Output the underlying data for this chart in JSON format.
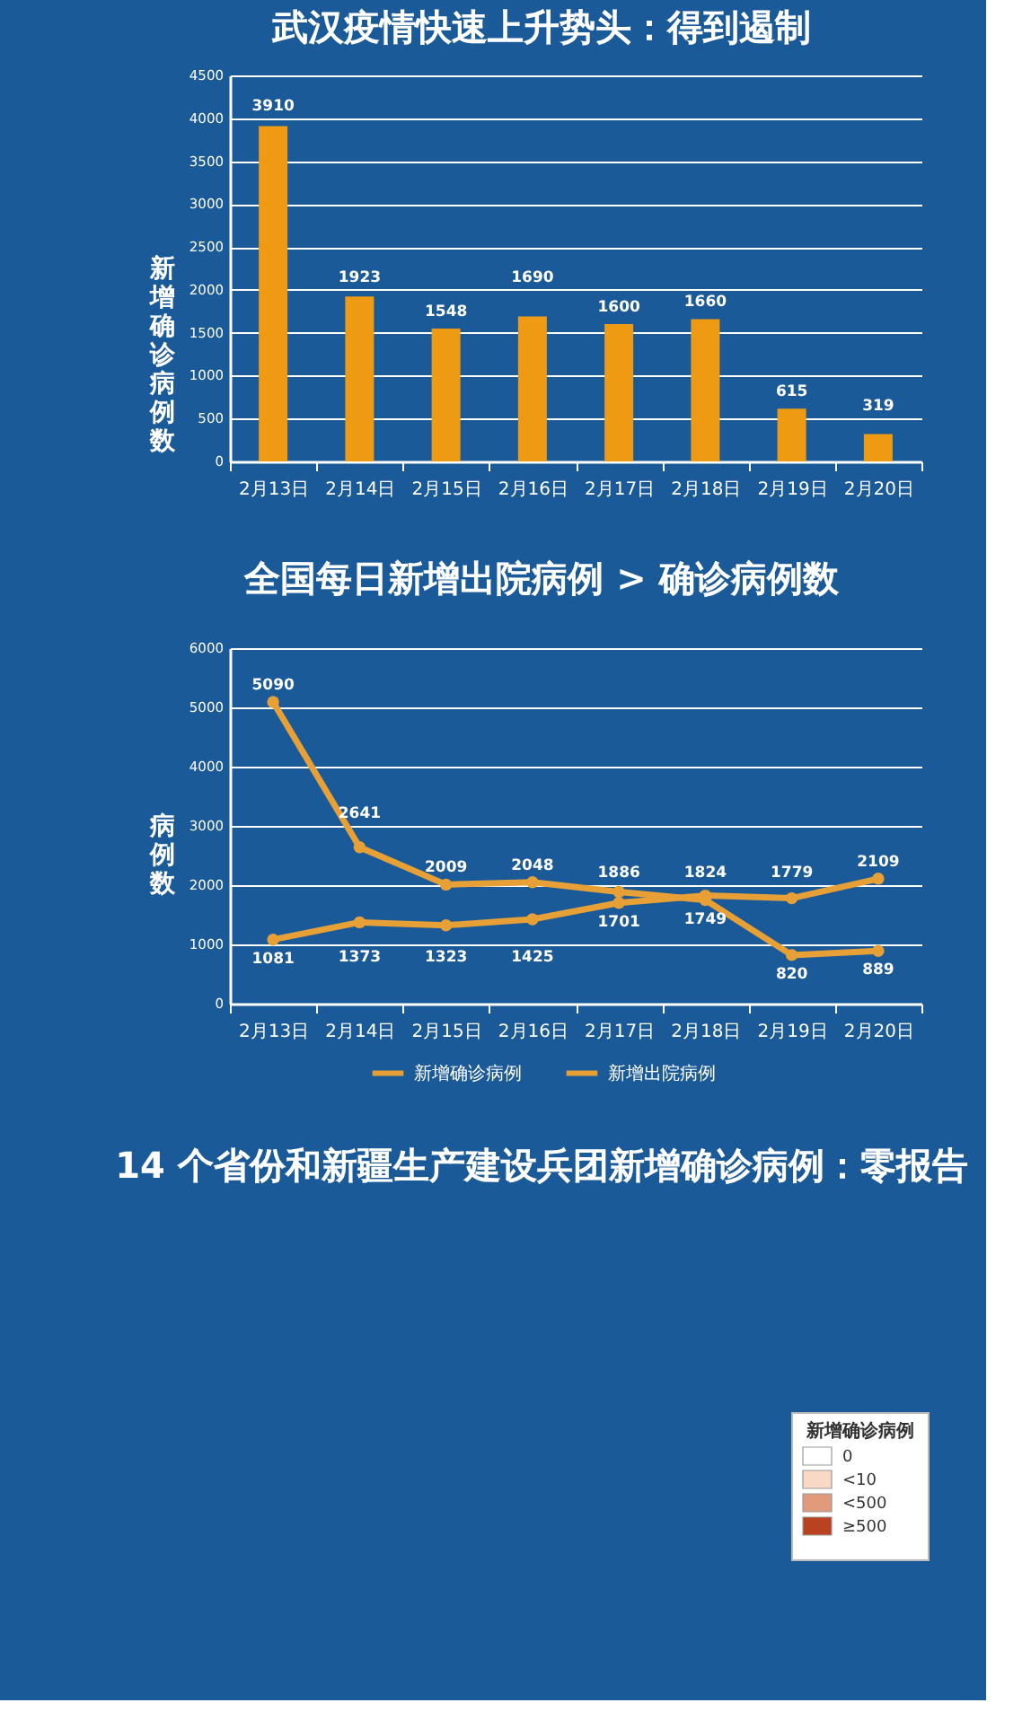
{
  "chart_data": [
    {
      "type": "bar",
      "title": "武汉疫情快速上升势头：得到遏制",
      "ylabel": "新增确诊病例数",
      "categories": [
        "2月13日",
        "2月14日",
        "2月15日",
        "2月16日",
        "2月17日",
        "2月18日",
        "2月19日",
        "2月20日"
      ],
      "values": [
        3910,
        1923,
        1548,
        1690,
        1600,
        1660,
        615,
        319
      ],
      "color": "#ee9a12",
      "ylim": [
        0,
        4500
      ],
      "yticks": [
        0,
        500,
        1000,
        1500,
        2000,
        2500,
        3000,
        3500,
        4000,
        4500
      ],
      "grid": "y",
      "data_labels": true
    },
    {
      "type": "line",
      "title": "全国每日新增出院病例 > 确诊病例数",
      "ylabel": "病例数",
      "categories": [
        "2月13日",
        "2月14日",
        "2月15日",
        "2月16日",
        "2月17日",
        "2月18日",
        "2月19日",
        "2月20日"
      ],
      "series": [
        {
          "name": "新增确诊病例",
          "color": "#e6a035",
          "values": [
            5090,
            2641,
            2009,
            2048,
            1886,
            1749,
            820,
            889
          ]
        },
        {
          "name": "新增出院病例",
          "color": "#e6a035",
          "values": [
            1081,
            1373,
            1323,
            1425,
            1701,
            1824,
            1779,
            2109
          ]
        }
      ],
      "ylim": [
        0,
        6000
      ],
      "yticks": [
        0,
        1000,
        2000,
        3000,
        4000,
        5000,
        6000
      ],
      "grid": "y",
      "legend": "bottom",
      "marker": "circle",
      "line_style": "solid",
      "data_labels": true
    },
    {
      "type": "other",
      "title": "14 个省份和新疆生产建设兵团新增确诊病例：零报告",
      "legend_title": "新增确诊病例",
      "categories": [
        "0",
        "<10",
        "<500",
        "≥500"
      ],
      "colors": [
        "#ffffff",
        "#f9d8c5",
        "#e29a7d",
        "#b8431e"
      ]
    }
  ]
}
